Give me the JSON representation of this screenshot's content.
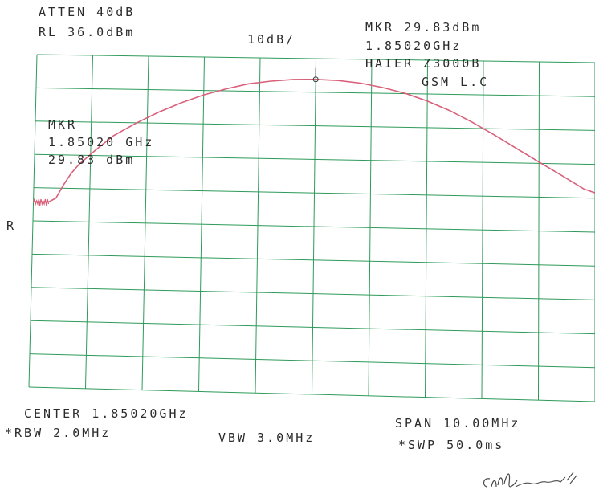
{
  "header": {
    "atten": "ATTEN 40dB",
    "ref_level": "RL 36.0dBm",
    "scale": "10dB/",
    "marker_title": "MKR 29.83dBm",
    "marker_freq": "1.85020GHz",
    "device_model": "HAIER Z3000B",
    "device_mode": "GSM L.C"
  },
  "marker_box": {
    "label": "MKR",
    "freq": "1.85020 GHz",
    "level": "29.83 dBm"
  },
  "side_label": "R",
  "footer": {
    "center": "CENTER 1.85020GHz",
    "rbw": "*RBW 2.0MHz",
    "vbw": "VBW 3.0MHz",
    "span": "SPAN 10.00MHz",
    "sweep": "*SWP 50.0ms"
  },
  "signature_text": "2004-4-15",
  "colors": {
    "grid": "#2e9a5a",
    "trace": "#d9607a",
    "text": "#2b2b2b"
  },
  "chart_data": {
    "type": "line",
    "title": "",
    "xlabel": "",
    "ylabel": "",
    "x_unit": "MHz",
    "y_unit": "dBm",
    "center_ghz": 1.8502,
    "span_mhz": 10.0,
    "xlim": [
      1845.2,
      1855.2
    ],
    "ylim": [
      -63.98,
      36.0
    ],
    "grid": true,
    "grid_divisions": [
      10,
      10
    ],
    "marker": {
      "x": 1850.2,
      "y": 29.83
    },
    "series": [
      {
        "x": [
          1845.2,
          1845.47,
          1845.6,
          1845.73,
          1845.86,
          1846.0,
          1846.3,
          1846.6,
          1847.0,
          1847.4,
          1847.8,
          1848.2,
          1848.6,
          1849.0,
          1849.4,
          1849.8,
          1850.2,
          1850.6,
          1851.0,
          1851.4,
          1851.8,
          1852.2,
          1852.6,
          1853.0,
          1853.4,
          1853.8,
          1854.2,
          1854.6,
          1855.0,
          1855.2
        ],
        "y": [
          -8.2,
          -8.2,
          -7.0,
          -3.0,
          0.5,
          3.3,
          7.8,
          12.0,
          15.9,
          19.3,
          22.2,
          24.7,
          26.6,
          28.2,
          29.1,
          29.7,
          29.83,
          29.6,
          28.9,
          27.7,
          26.1,
          23.9,
          21.2,
          17.9,
          14.2,
          10.3,
          6.4,
          2.6,
          -1.3,
          -2.4
        ]
      }
    ]
  }
}
